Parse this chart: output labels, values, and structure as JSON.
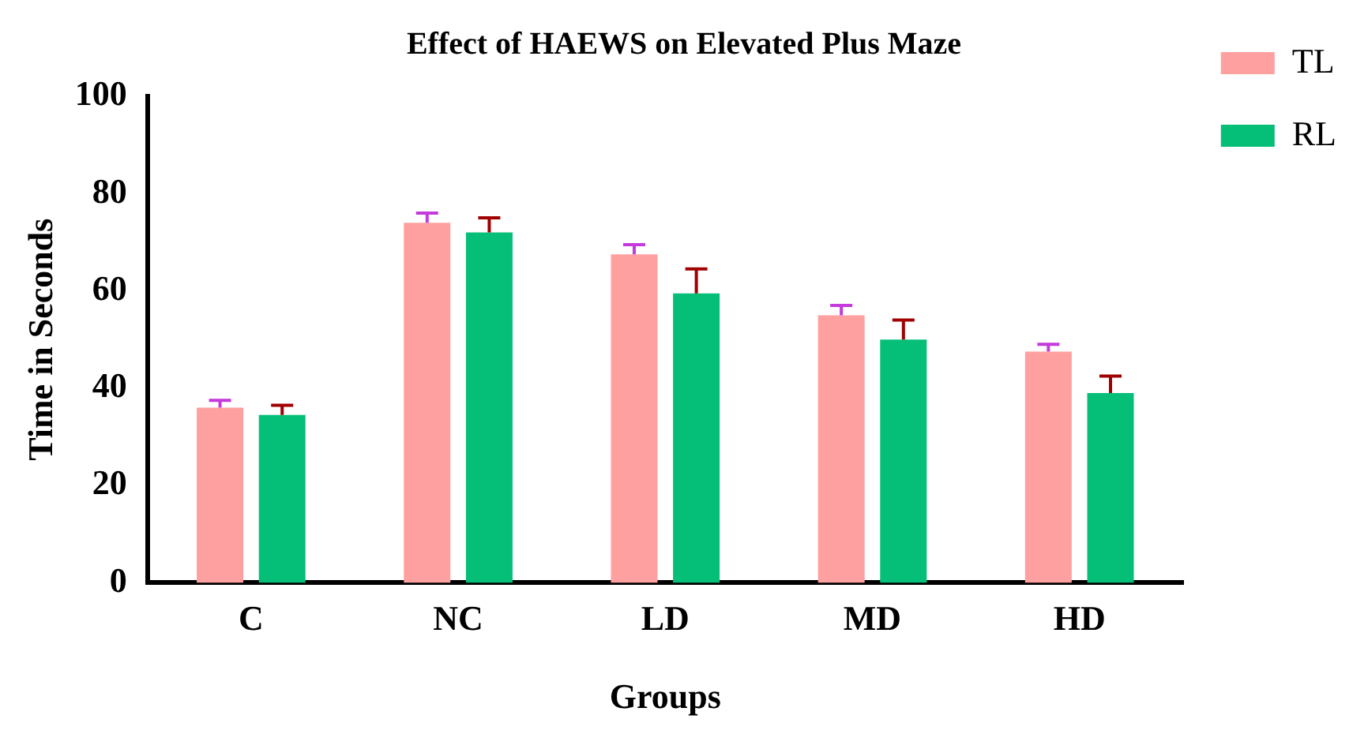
{
  "chart_data": {
    "type": "bar",
    "title": "Effect of HAEWS on Elevated Plus Maze",
    "xlabel": "Groups",
    "ylabel": "Time in Seconds",
    "categories": [
      "C",
      "NC",
      "LD",
      "MD",
      "HD"
    ],
    "series": [
      {
        "name": "TL",
        "color": "#ffa0a0",
        "values": [
          36,
          74,
          67.5,
          55,
          47.5
        ],
        "errors": [
          1.5,
          2,
          2,
          2,
          1.5
        ]
      },
      {
        "name": "RL",
        "color": "#05bf78",
        "values": [
          34.5,
          72,
          59.5,
          50,
          39
        ],
        "errors": [
          2,
          3,
          5,
          4,
          3.5
        ]
      }
    ],
    "ylim": [
      0,
      100
    ],
    "yticks": [
      0,
      20,
      40,
      60,
      80,
      100
    ],
    "grid": false,
    "legend": "top right"
  }
}
